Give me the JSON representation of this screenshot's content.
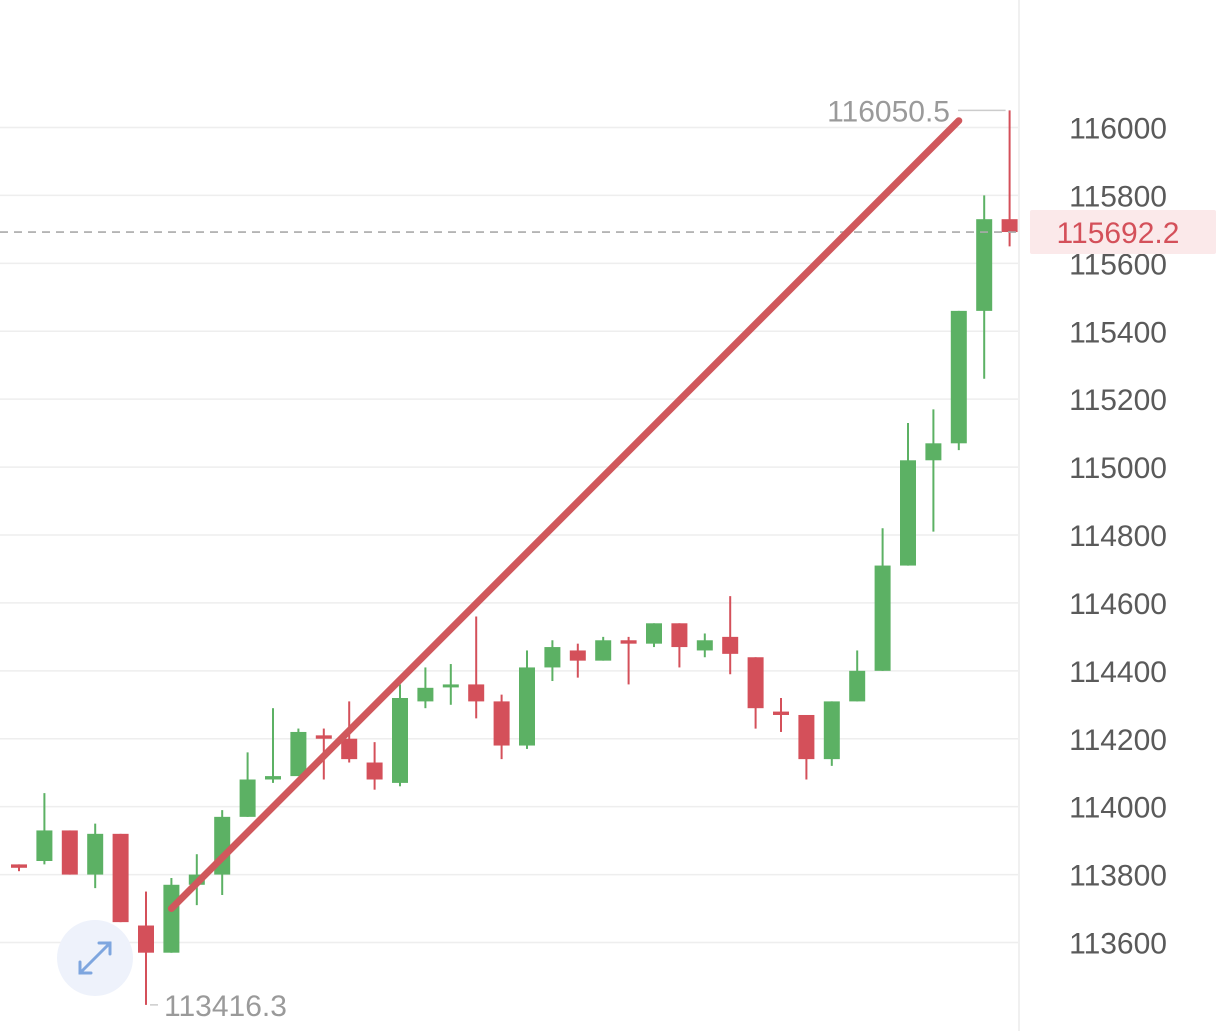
{
  "chart_data": {
    "type": "candlestick",
    "y_axis": {
      "position": "right",
      "ticks": [
        "116000",
        "115800",
        "115600",
        "115400",
        "115200",
        "115000",
        "114800",
        "114600",
        "114400",
        "114200",
        "114000",
        "113800",
        "113600"
      ],
      "range": [
        113350,
        116300
      ]
    },
    "grid": true,
    "high_label": "116050.5",
    "low_label": "113416.3",
    "last_price": 115692.2,
    "last_price_label": "115692.2",
    "colors": {
      "up": "#5cb164",
      "down": "#d4505a",
      "trendline": "#d0585c",
      "grid": "#eeeeee",
      "axis_text": "#5a5a5a",
      "annotation_text": "#9a9a9a",
      "price_tag_bg": "#fbe9ea"
    },
    "candles": [
      {
        "open": 113830,
        "high": 113830,
        "close": 113820,
        "low": 113810
      },
      {
        "open": 113840,
        "high": 114040,
        "close": 113930,
        "low": 113830
      },
      {
        "open": 113930,
        "high": 113930,
        "close": 113800,
        "low": 113800
      },
      {
        "open": 113800,
        "high": 113950,
        "close": 113920,
        "low": 113760
      },
      {
        "open": 113920,
        "high": 113920,
        "close": 113660,
        "low": 113660
      },
      {
        "open": 113650,
        "high": 113750,
        "close": 113570,
        "low": 113416.3
      },
      {
        "open": 113570,
        "high": 113790,
        "close": 113770,
        "low": 113570
      },
      {
        "open": 113770,
        "high": 113860,
        "close": 113800,
        "low": 113710
      },
      {
        "open": 113800,
        "high": 113990,
        "close": 113970,
        "low": 113740
      },
      {
        "open": 113970,
        "high": 114160,
        "close": 114080,
        "low": 113970
      },
      {
        "open": 114080,
        "high": 114290,
        "close": 114090,
        "low": 114070
      },
      {
        "open": 114090,
        "high": 114230,
        "close": 114220,
        "low": 114090
      },
      {
        "open": 114210,
        "high": 114230,
        "close": 114200,
        "low": 114080
      },
      {
        "open": 114200,
        "high": 114310,
        "close": 114140,
        "low": 114130
      },
      {
        "open": 114130,
        "high": 114190,
        "close": 114080,
        "low": 114050
      },
      {
        "open": 114070,
        "high": 114360,
        "close": 114320,
        "low": 114060
      },
      {
        "open": 114310,
        "high": 114410,
        "close": 114350,
        "low": 114290
      },
      {
        "open": 114360,
        "high": 114420,
        "close": 114360,
        "low": 114300
      },
      {
        "open": 114360,
        "high": 114560,
        "close": 114310,
        "low": 114260
      },
      {
        "open": 114310,
        "high": 114330,
        "close": 114180,
        "low": 114140
      },
      {
        "open": 114180,
        "high": 114460,
        "close": 114410,
        "low": 114170
      },
      {
        "open": 114410,
        "high": 114490,
        "close": 114470,
        "low": 114370
      },
      {
        "open": 114460,
        "high": 114480,
        "close": 114430,
        "low": 114380
      },
      {
        "open": 114430,
        "high": 114500,
        "close": 114490,
        "low": 114430
      },
      {
        "open": 114490,
        "high": 114500,
        "close": 114480,
        "low": 114360
      },
      {
        "open": 114480,
        "high": 114540,
        "close": 114540,
        "low": 114470
      },
      {
        "open": 114540,
        "high": 114540,
        "close": 114470,
        "low": 114410
      },
      {
        "open": 114460,
        "high": 114510,
        "close": 114490,
        "low": 114440
      },
      {
        "open": 114500,
        "high": 114620,
        "close": 114450,
        "low": 114390
      },
      {
        "open": 114440,
        "high": 114440,
        "close": 114290,
        "low": 114230
      },
      {
        "open": 114280,
        "high": 114320,
        "close": 114270,
        "low": 114220
      },
      {
        "open": 114270,
        "high": 114270,
        "close": 114140,
        "low": 114080
      },
      {
        "open": 114140,
        "high": 114310,
        "close": 114310,
        "low": 114120
      },
      {
        "open": 114310,
        "high": 114460,
        "close": 114400,
        "low": 114310
      },
      {
        "open": 114400,
        "high": 114820,
        "close": 114710,
        "low": 114400
      },
      {
        "open": 114710,
        "high": 115130,
        "close": 115020,
        "low": 114710
      },
      {
        "open": 115020,
        "high": 115170,
        "close": 115070,
        "low": 114810
      },
      {
        "open": 115070,
        "high": 115460,
        "close": 115460,
        "low": 115050
      },
      {
        "open": 115460,
        "high": 115800,
        "close": 115730,
        "low": 115260
      },
      {
        "open": 115730,
        "high": 116050.5,
        "close": 115692.2,
        "low": 115650
      }
    ],
    "trendline": {
      "from": {
        "candle": 6,
        "price": 113700
      },
      "to": {
        "candle": 37,
        "price": 116020
      }
    }
  }
}
